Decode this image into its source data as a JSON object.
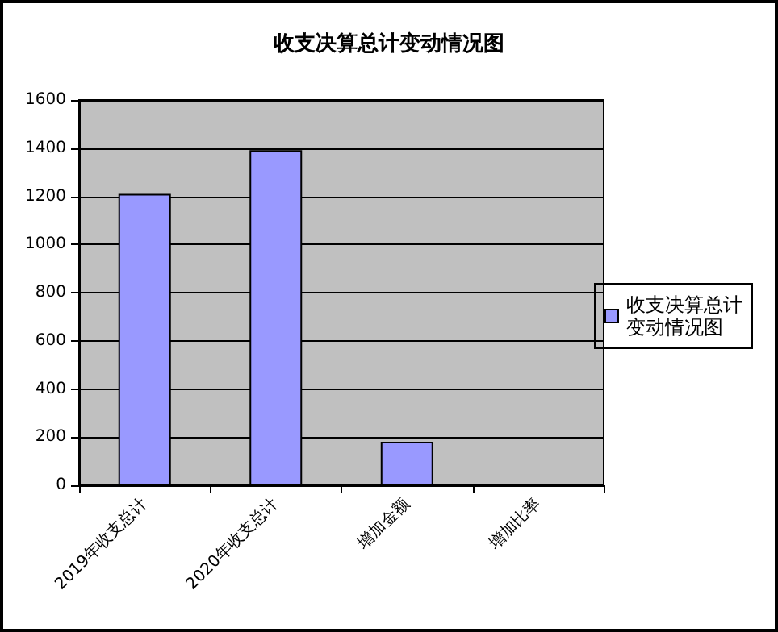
{
  "chart_data": {
    "type": "bar",
    "title": "收支决算总计变动情况图",
    "categories": [
      "2019年收支总计",
      "2020年收支总计",
      "增加金额",
      "增加比率"
    ],
    "series": [
      {
        "name": "收支决算总计变动情况图",
        "color": "#9999ff",
        "values": [
          1210,
          1392,
          181,
          null
        ]
      }
    ],
    "ylim": [
      0,
      1600
    ],
    "yticks": [
      0,
      200,
      400,
      600,
      800,
      1000,
      1200,
      1400,
      1600
    ],
    "grid": "y",
    "legend": "right"
  }
}
